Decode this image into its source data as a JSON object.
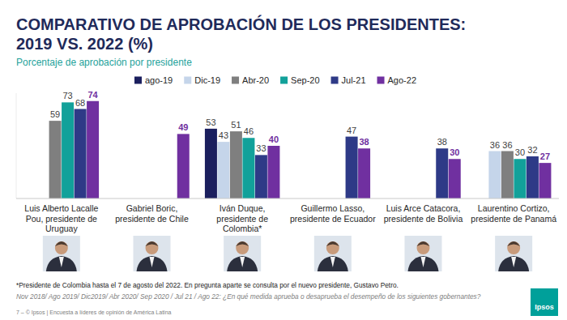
{
  "chart_data": {
    "type": "bar",
    "title": "COMPARATIVO DE APROBACIÓN DE LOS PRESIDENTES: 2019 VS. 2022 (%)",
    "subtitle": "Porcentaje de aprobación por presidente",
    "categories": [
      "Luis Alberto Lacalle Pou, presidente de Uruguay",
      "Gabriel Boric, presidente de Chile",
      "Iván Duque, presidente de Colombia*",
      "Guillermo Lasso, presidente de Ecuador",
      "Luis Arce Catacora, presidente de Bolivia",
      "Laurentino Cortizo, presidente de Panamá"
    ],
    "series": [
      {
        "name": "ago-19",
        "color": "#1b1f5e",
        "values": [
          null,
          null,
          53,
          null,
          null,
          null
        ]
      },
      {
        "name": "Dic-19",
        "color": "#c5d5ea",
        "values": [
          null,
          null,
          43,
          null,
          null,
          36
        ]
      },
      {
        "name": "Abr-20",
        "color": "#7f7f7f",
        "values": [
          59,
          null,
          51,
          null,
          null,
          36
        ]
      },
      {
        "name": "Sep-20",
        "color": "#12a19a",
        "values": [
          73,
          null,
          46,
          null,
          null,
          30
        ]
      },
      {
        "name": "Jul-21",
        "color": "#2e3a87",
        "values": [
          68,
          null,
          33,
          47,
          38,
          32
        ]
      },
      {
        "name": "Ago-22",
        "color": "#7030a0",
        "values": [
          74,
          49,
          40,
          38,
          30,
          27
        ]
      }
    ],
    "ylim": [
      0,
      80
    ],
    "data_labels": true,
    "tick_labels": "x",
    "legend": "top",
    "annotations": [
      "*Presidente de Colombia hasta el 7 de agosto del 2022. En pregunta aparte se consulta por el nuevo presidente, Gustavo Petro.",
      "Nov 2018/ Ago 2019/ Dic2019/ Abr 2020/ Sep 2020 / Jul 21 / Ago 22: ¿En qué medida aprueba o desaprueba el desempeño de los siguientes gobernantes?",
      "7 – © Ipsos | Encuesta a líderes de opinión de América Latina",
      "Ipsos"
    ]
  }
}
